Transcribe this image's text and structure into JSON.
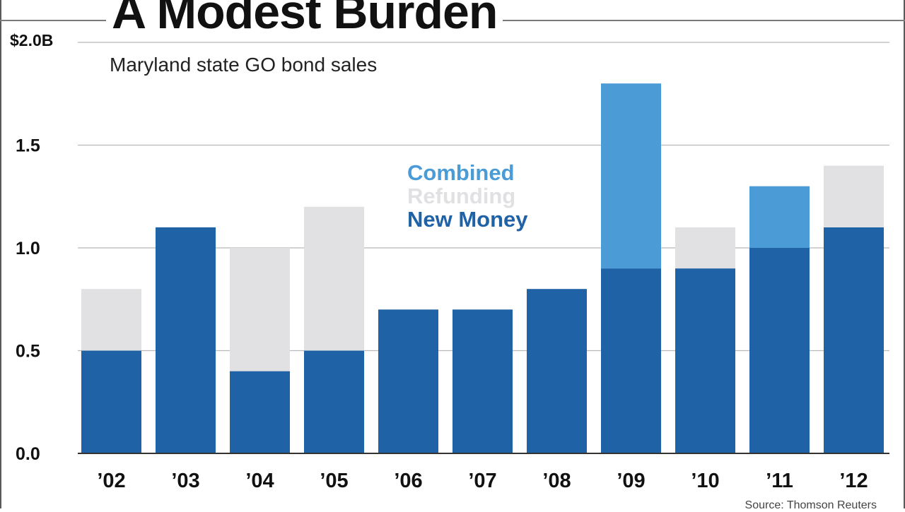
{
  "colors": {
    "new_money": "#1f62a6",
    "refunding": "#e1e1e3",
    "combined": "#4a9bd6",
    "gridline": "#b8b8b8",
    "axis": "#333333",
    "text": "#111111"
  },
  "chart_data": {
    "type": "bar",
    "stacked": true,
    "title": "A Modest Burden",
    "subtitle": "Maryland state GO bond sales",
    "ylabel": "",
    "y_unit_label": "$2.0B",
    "ylim": [
      0,
      2.0
    ],
    "yticks": [
      {
        "value": 0.0,
        "label": "0.0"
      },
      {
        "value": 0.5,
        "label": "0.5"
      },
      {
        "value": 1.0,
        "label": "1.0"
      },
      {
        "value": 1.5,
        "label": "1.5"
      },
      {
        "value": 2.0,
        "label": "$2.0B"
      }
    ],
    "grid": true,
    "categories": [
      "’02",
      "’03",
      "’04",
      "’05",
      "’06",
      "’07",
      "’08",
      "’09",
      "’10",
      "’11",
      "’12"
    ],
    "series": [
      {
        "name": "New Money",
        "color_key": "new_money",
        "values": [
          0.5,
          1.1,
          0.4,
          0.5,
          0.7,
          0.7,
          0.8,
          0.9,
          0.9,
          1.0,
          1.1
        ]
      },
      {
        "name": "Refunding",
        "color_key": "refunding",
        "values": [
          0.3,
          0,
          0.6,
          0.7,
          0,
          0,
          0,
          0,
          0.2,
          0,
          0.3
        ]
      },
      {
        "name": "Combined",
        "color_key": "combined",
        "values": [
          0,
          0,
          0,
          0,
          0,
          0,
          0,
          0.9,
          0,
          0.3,
          0
        ]
      }
    ],
    "legend": {
      "placement": "top-center",
      "entries": [
        {
          "label": "Combined",
          "color_key": "combined"
        },
        {
          "label": "Refunding",
          "color_key": "refunding"
        },
        {
          "label": "New Money",
          "color_key": "new_money"
        }
      ]
    },
    "source": "Source: Thomson Reuters"
  }
}
